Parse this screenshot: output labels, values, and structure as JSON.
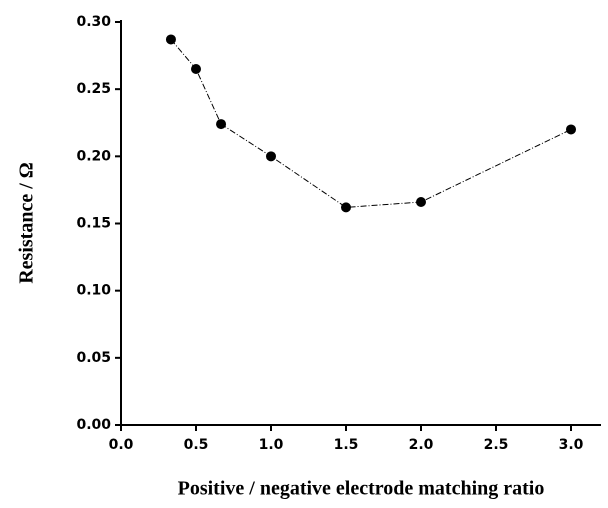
{
  "chart_data": {
    "type": "line",
    "x_label": "Positive / negative electrode matching ratio",
    "y_label": "Resistance / Ω",
    "x": [
      0.333,
      0.5,
      0.667,
      1.0,
      1.5,
      2.0,
      3.0
    ],
    "values": [
      0.287,
      0.265,
      0.224,
      0.2,
      0.162,
      0.166,
      0.22
    ],
    "color": "#000000",
    "xlim": [
      0,
      3.2
    ],
    "xticks": [
      {
        "value": 0,
        "label": "0.0"
      },
      0.5,
      {
        "value": 1,
        "label": "1.0"
      },
      1.5,
      {
        "value": 2,
        "label": "2.0"
      },
      2.5,
      {
        "value": 3,
        "label": "3.0"
      }
    ],
    "ylim": [
      0,
      0.3
    ],
    "yticks": [
      {
        "value": 0,
        "label": "0.00"
      },
      0.05,
      {
        "value": 0.1,
        "label": "0.10"
      },
      0.15,
      {
        "value": 0.2,
        "label": "0.20"
      },
      0.25,
      {
        "value": 0.3,
        "label": "0.30"
      }
    ]
  }
}
